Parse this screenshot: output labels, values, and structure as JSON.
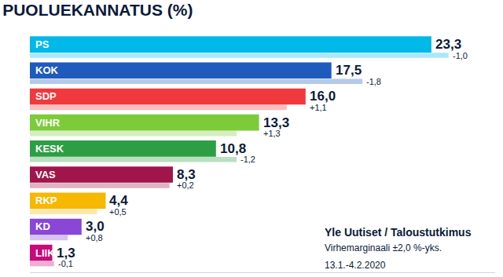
{
  "chart_data": {
    "type": "bar",
    "title": "PUOLUEKANNATUS (%)",
    "orientation": "horizontal",
    "categories": [
      "PS",
      "KOK",
      "SDP",
      "VIHR",
      "KESK",
      "VAS",
      "RKP",
      "KD",
      "LIIK"
    ],
    "values": [
      23.3,
      17.5,
      16.0,
      13.3,
      10.8,
      8.3,
      4.4,
      3.0,
      1.3
    ],
    "value_labels": [
      "23,3",
      "17,5",
      "16,0",
      "13,3",
      "10,8",
      "8,3",
      "4,4",
      "3,0",
      "1,3"
    ],
    "previous_values": [
      24.3,
      19.3,
      14.9,
      12.0,
      12.0,
      8.1,
      3.9,
      2.2,
      1.4
    ],
    "change_labels": [
      "-1,0",
      "-1,8",
      "+1,1",
      "+1,3",
      "-1,2",
      "+0,2",
      "+0,5",
      "+0,8",
      "-0,1"
    ],
    "colors": [
      "#00b9e8",
      "#1f5bbd",
      "#f0393c",
      "#7ccc3a",
      "#2e9e44",
      "#a0154a",
      "#f6b800",
      "#8a46d6",
      "#c8087c"
    ],
    "annotations": [
      "Yle Uutiset / Taloustutkimus",
      "Virhemarginaali ±2,0 %-yks.",
      "13.1.-4.2.2020"
    ],
    "xlim": [
      0,
      27
    ],
    "xticks": [],
    "data_labels": true,
    "tick_labels": false,
    "grid": false
  }
}
